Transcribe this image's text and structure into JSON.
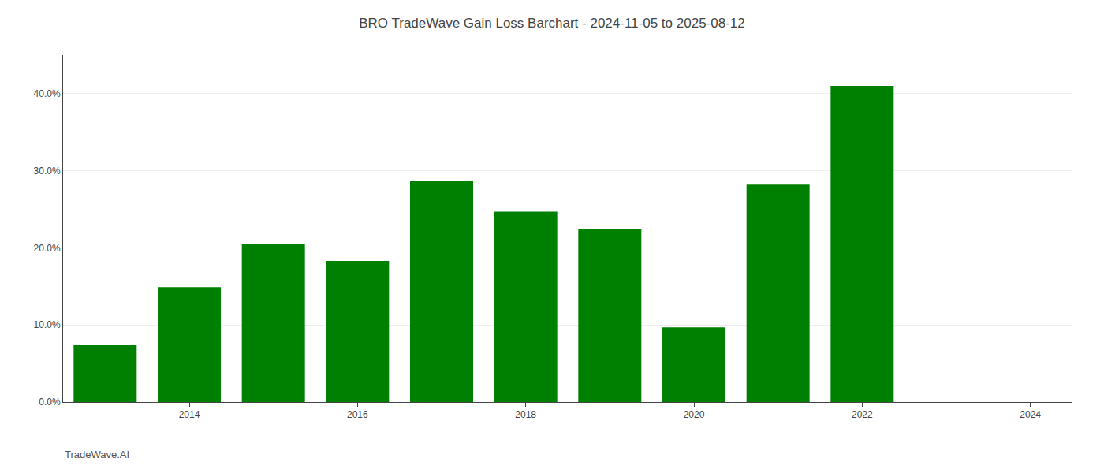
{
  "chart_data": {
    "type": "bar",
    "title": "BRO TradeWave Gain Loss Barchart - 2024-11-05 to 2025-08-12",
    "annotations": [
      "TradeWave.AI"
    ],
    "x": [
      2013,
      2014,
      2015,
      2016,
      2017,
      2018,
      2019,
      2020,
      2021,
      2022,
      2023
    ],
    "values": [
      7.4,
      14.9,
      20.5,
      18.3,
      28.7,
      24.7,
      22.4,
      9.7,
      28.2,
      41.0,
      0.0
    ],
    "color": "#008000",
    "xlim": [
      2012.5,
      2024.5
    ],
    "xticks": [
      2014,
      2016,
      2018,
      2020,
      2022,
      2024
    ],
    "ylim": [
      0,
      45
    ],
    "yticks": [
      {
        "value": 0,
        "label": "0.0%"
      },
      {
        "value": 10,
        "label": "10.0%"
      },
      {
        "value": 20,
        "label": "20.0%"
      },
      {
        "value": 30,
        "label": "30.0%"
      },
      {
        "value": 40,
        "label": "40.0%"
      }
    ],
    "grid": true
  }
}
